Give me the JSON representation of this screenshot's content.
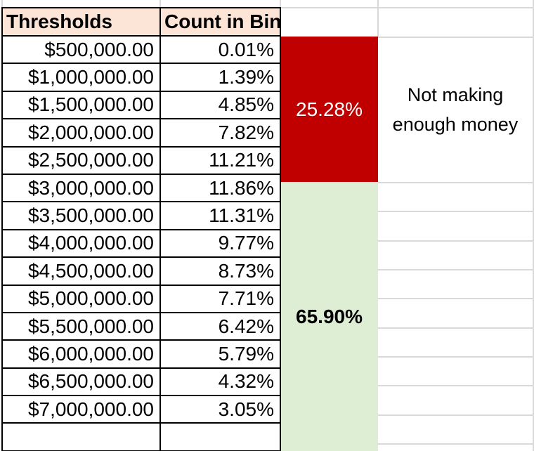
{
  "sheet": {
    "table": {
      "headers": [
        "Thresholds",
        "Count in Bin"
      ],
      "rows": [
        [
          "$500,000.00",
          "0.01%"
        ],
        [
          "$1,000,000.00",
          "1.39%"
        ],
        [
          "$1,500,000.00",
          "4.85%"
        ],
        [
          "$2,000,000.00",
          "7.82%"
        ],
        [
          "$2,500,000.00",
          "11.21%"
        ],
        [
          "$3,000,000.00",
          "11.86%"
        ],
        [
          "$3,500,000.00",
          "11.31%"
        ],
        [
          "$4,000,000.00",
          "9.77%"
        ],
        [
          "$4,500,000.00",
          "8.73%"
        ],
        [
          "$5,000,000.00",
          "7.71%"
        ],
        [
          "$5,500,000.00",
          "6.42%"
        ],
        [
          "$6,000,000.00",
          "5.79%"
        ],
        [
          "$6,500,000.00",
          "4.32%"
        ],
        [
          "$7,000,000.00",
          "3.05%"
        ],
        [
          "",
          ""
        ]
      ]
    },
    "merged_cells": {
      "not_enough": {
        "value": "25.28%",
        "fill": "#C00000",
        "text_color": "#FFFFFF"
      },
      "enough": {
        "value": "65.90%",
        "fill": "#DEEED5",
        "text_color": "#000000"
      }
    },
    "annotation": {
      "text": "Not making enough money"
    },
    "colors": {
      "header_fill": "#FCE4D6",
      "table_border": "#000000",
      "gridline": "#D9D9D9"
    }
  }
}
